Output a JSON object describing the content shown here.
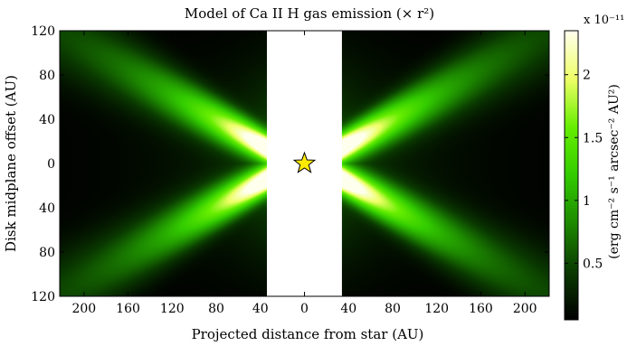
{
  "chart_data": {
    "type": "heatmap",
    "title": "Model of Ca II H gas emission (× r²)",
    "xlabel": "Projected distance from star (AU)",
    "ylabel": "Disk midplane offset (AU)",
    "x_range_au": [
      -222,
      222
    ],
    "y_range_au": [
      -120,
      120
    ],
    "masked_x_range_au": [
      -34,
      34
    ],
    "x_ticks": [
      {
        "value": -200,
        "label": "200"
      },
      {
        "value": -160,
        "label": "160"
      },
      {
        "value": -120,
        "label": "120"
      },
      {
        "value": -80,
        "label": "80"
      },
      {
        "value": -40,
        "label": "40"
      },
      {
        "value": 0,
        "label": "0"
      },
      {
        "value": 40,
        "label": "40"
      },
      {
        "value": 80,
        "label": "80"
      },
      {
        "value": 120,
        "label": "120"
      },
      {
        "value": 160,
        "label": "160"
      },
      {
        "value": 200,
        "label": "200"
      }
    ],
    "y_ticks": [
      {
        "value": 120,
        "label": "120"
      },
      {
        "value": 80,
        "label": "80"
      },
      {
        "value": 40,
        "label": "40"
      },
      {
        "value": 0,
        "label": "0"
      },
      {
        "value": -40,
        "label": "40"
      },
      {
        "value": -80,
        "label": "80"
      },
      {
        "value": -120,
        "label": "120"
      }
    ],
    "colorbar": {
      "label": "(erg cm⁻² s⁻¹ arcsec⁻² AU²)",
      "exponent_label": "x 10⁻¹¹",
      "range": [
        0.05,
        2.35
      ],
      "ticks": [
        {
          "value": 0.5,
          "label": "0.5"
        },
        {
          "value": 1,
          "label": "1"
        },
        {
          "value": 1.5,
          "label": "1.5"
        },
        {
          "value": 2,
          "label": "2"
        }
      ],
      "colormap": [
        "#000000",
        "#0a3a00",
        "#1d8a00",
        "#33cc00",
        "#66ee00",
        "#eeff66",
        "#ffffee"
      ]
    },
    "model": {
      "description_values": "emission peaks along two wing ridges y = ±(14 + 0.55·(|x| − 34)) AU, brightest near the inner mask edge",
      "peak_value": 2.3
    },
    "star_marker": {
      "x": 0,
      "y": 0,
      "symbol": "star",
      "color": "#ffeb00"
    }
  }
}
